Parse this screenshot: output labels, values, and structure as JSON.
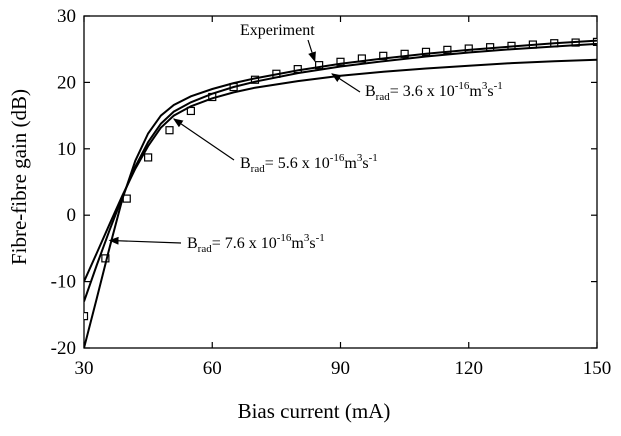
{
  "chart_data": {
    "type": "line",
    "title": "",
    "xlabel": "Bias current (mA)",
    "ylabel": "Fibre-fibre gain (dB)",
    "xlim": [
      30,
      150
    ],
    "ylim": [
      -20,
      30
    ],
    "xticks": [
      30,
      60,
      90,
      120,
      150
    ],
    "yticks": [
      -20,
      -10,
      0,
      10,
      20,
      30
    ],
    "grid": false,
    "series": [
      {
        "name": "Experiment",
        "kind": "markers",
        "marker": "square",
        "x": [
          30,
          35,
          40,
          45,
          50,
          55,
          60,
          65,
          70,
          75,
          80,
          85,
          90,
          95,
          100,
          105,
          110,
          115,
          120,
          125,
          130,
          135,
          140,
          145,
          150
        ],
        "y": [
          -15.2,
          -6.5,
          2.5,
          8.7,
          12.8,
          15.7,
          17.8,
          19.3,
          20.4,
          21.3,
          22.0,
          22.6,
          23.1,
          23.6,
          24.0,
          24.3,
          24.6,
          24.9,
          25.1,
          25.3,
          25.5,
          25.7,
          25.9,
          26.0,
          26.1
        ]
      },
      {
        "name": "B_rad = 3.6 x 10^-16 m^3 s^-1",
        "kind": "line",
        "x": [
          30,
          33,
          36,
          39,
          42,
          45,
          48,
          51,
          55,
          60,
          65,
          70,
          80,
          90,
          100,
          110,
          120,
          130,
          140,
          150
        ],
        "y": [
          -10.0,
          -5.7,
          -1.3,
          3.0,
          7.0,
          10.4,
          13.2,
          15.0,
          16.4,
          17.6,
          18.5,
          19.2,
          20.2,
          21.0,
          21.6,
          22.1,
          22.5,
          22.9,
          23.2,
          23.4
        ]
      },
      {
        "name": "B_rad = 5.6 x 10^-16 m^3 s^-1",
        "kind": "line",
        "x": [
          30,
          33,
          36,
          39,
          42,
          45,
          48,
          51,
          55,
          60,
          65,
          70,
          80,
          90,
          100,
          110,
          120,
          130,
          140,
          150
        ],
        "y": [
          -13.0,
          -7.5,
          -2.2,
          2.8,
          7.3,
          11.0,
          13.8,
          15.6,
          17.0,
          18.3,
          19.3,
          20.1,
          21.4,
          22.4,
          23.2,
          23.9,
          24.5,
          25.0,
          25.4,
          25.8
        ]
      },
      {
        "name": "B_rad = 7.6 x 10^-16 m^3 s^-1",
        "kind": "line",
        "x": [
          30,
          33,
          36,
          39,
          42,
          45,
          48,
          51,
          55,
          60,
          65,
          70,
          80,
          90,
          100,
          110,
          120,
          130,
          140,
          150
        ],
        "y": [
          -20.0,
          -12.5,
          -4.8,
          2.5,
          8.2,
          12.3,
          15.0,
          16.6,
          17.9,
          19.0,
          19.9,
          20.6,
          21.8,
          22.8,
          23.6,
          24.3,
          24.9,
          25.4,
          25.9,
          26.3
        ]
      }
    ],
    "annotations": [
      {
        "id": "experiment",
        "text": "Experiment",
        "target": [
          84,
          23.2
        ]
      },
      {
        "id": "b36",
        "base": "B",
        "sub": "rad",
        "text": "= 3.6 x 10",
        "exp": "-16",
        "unit": "m",
        "unit_exp": "3",
        "unit2": "s",
        "unit2_exp": "-1",
        "target": [
          88,
          21.3
        ]
      },
      {
        "id": "b56",
        "base": "B",
        "sub": "rad",
        "text": "= 5.6 x 10",
        "exp": "-16",
        "unit": "m",
        "unit_exp": "3",
        "unit2": "s",
        "unit2_exp": "-1",
        "target": [
          51,
          14.5
        ]
      },
      {
        "id": "b76",
        "base": "B",
        "sub": "rad",
        "text": "= 7.6 x 10",
        "exp": "-16",
        "unit": "m",
        "unit_exp": "3",
        "unit2": "s",
        "unit2_exp": "-1",
        "target": [
          36,
          -3.8
        ]
      }
    ]
  }
}
